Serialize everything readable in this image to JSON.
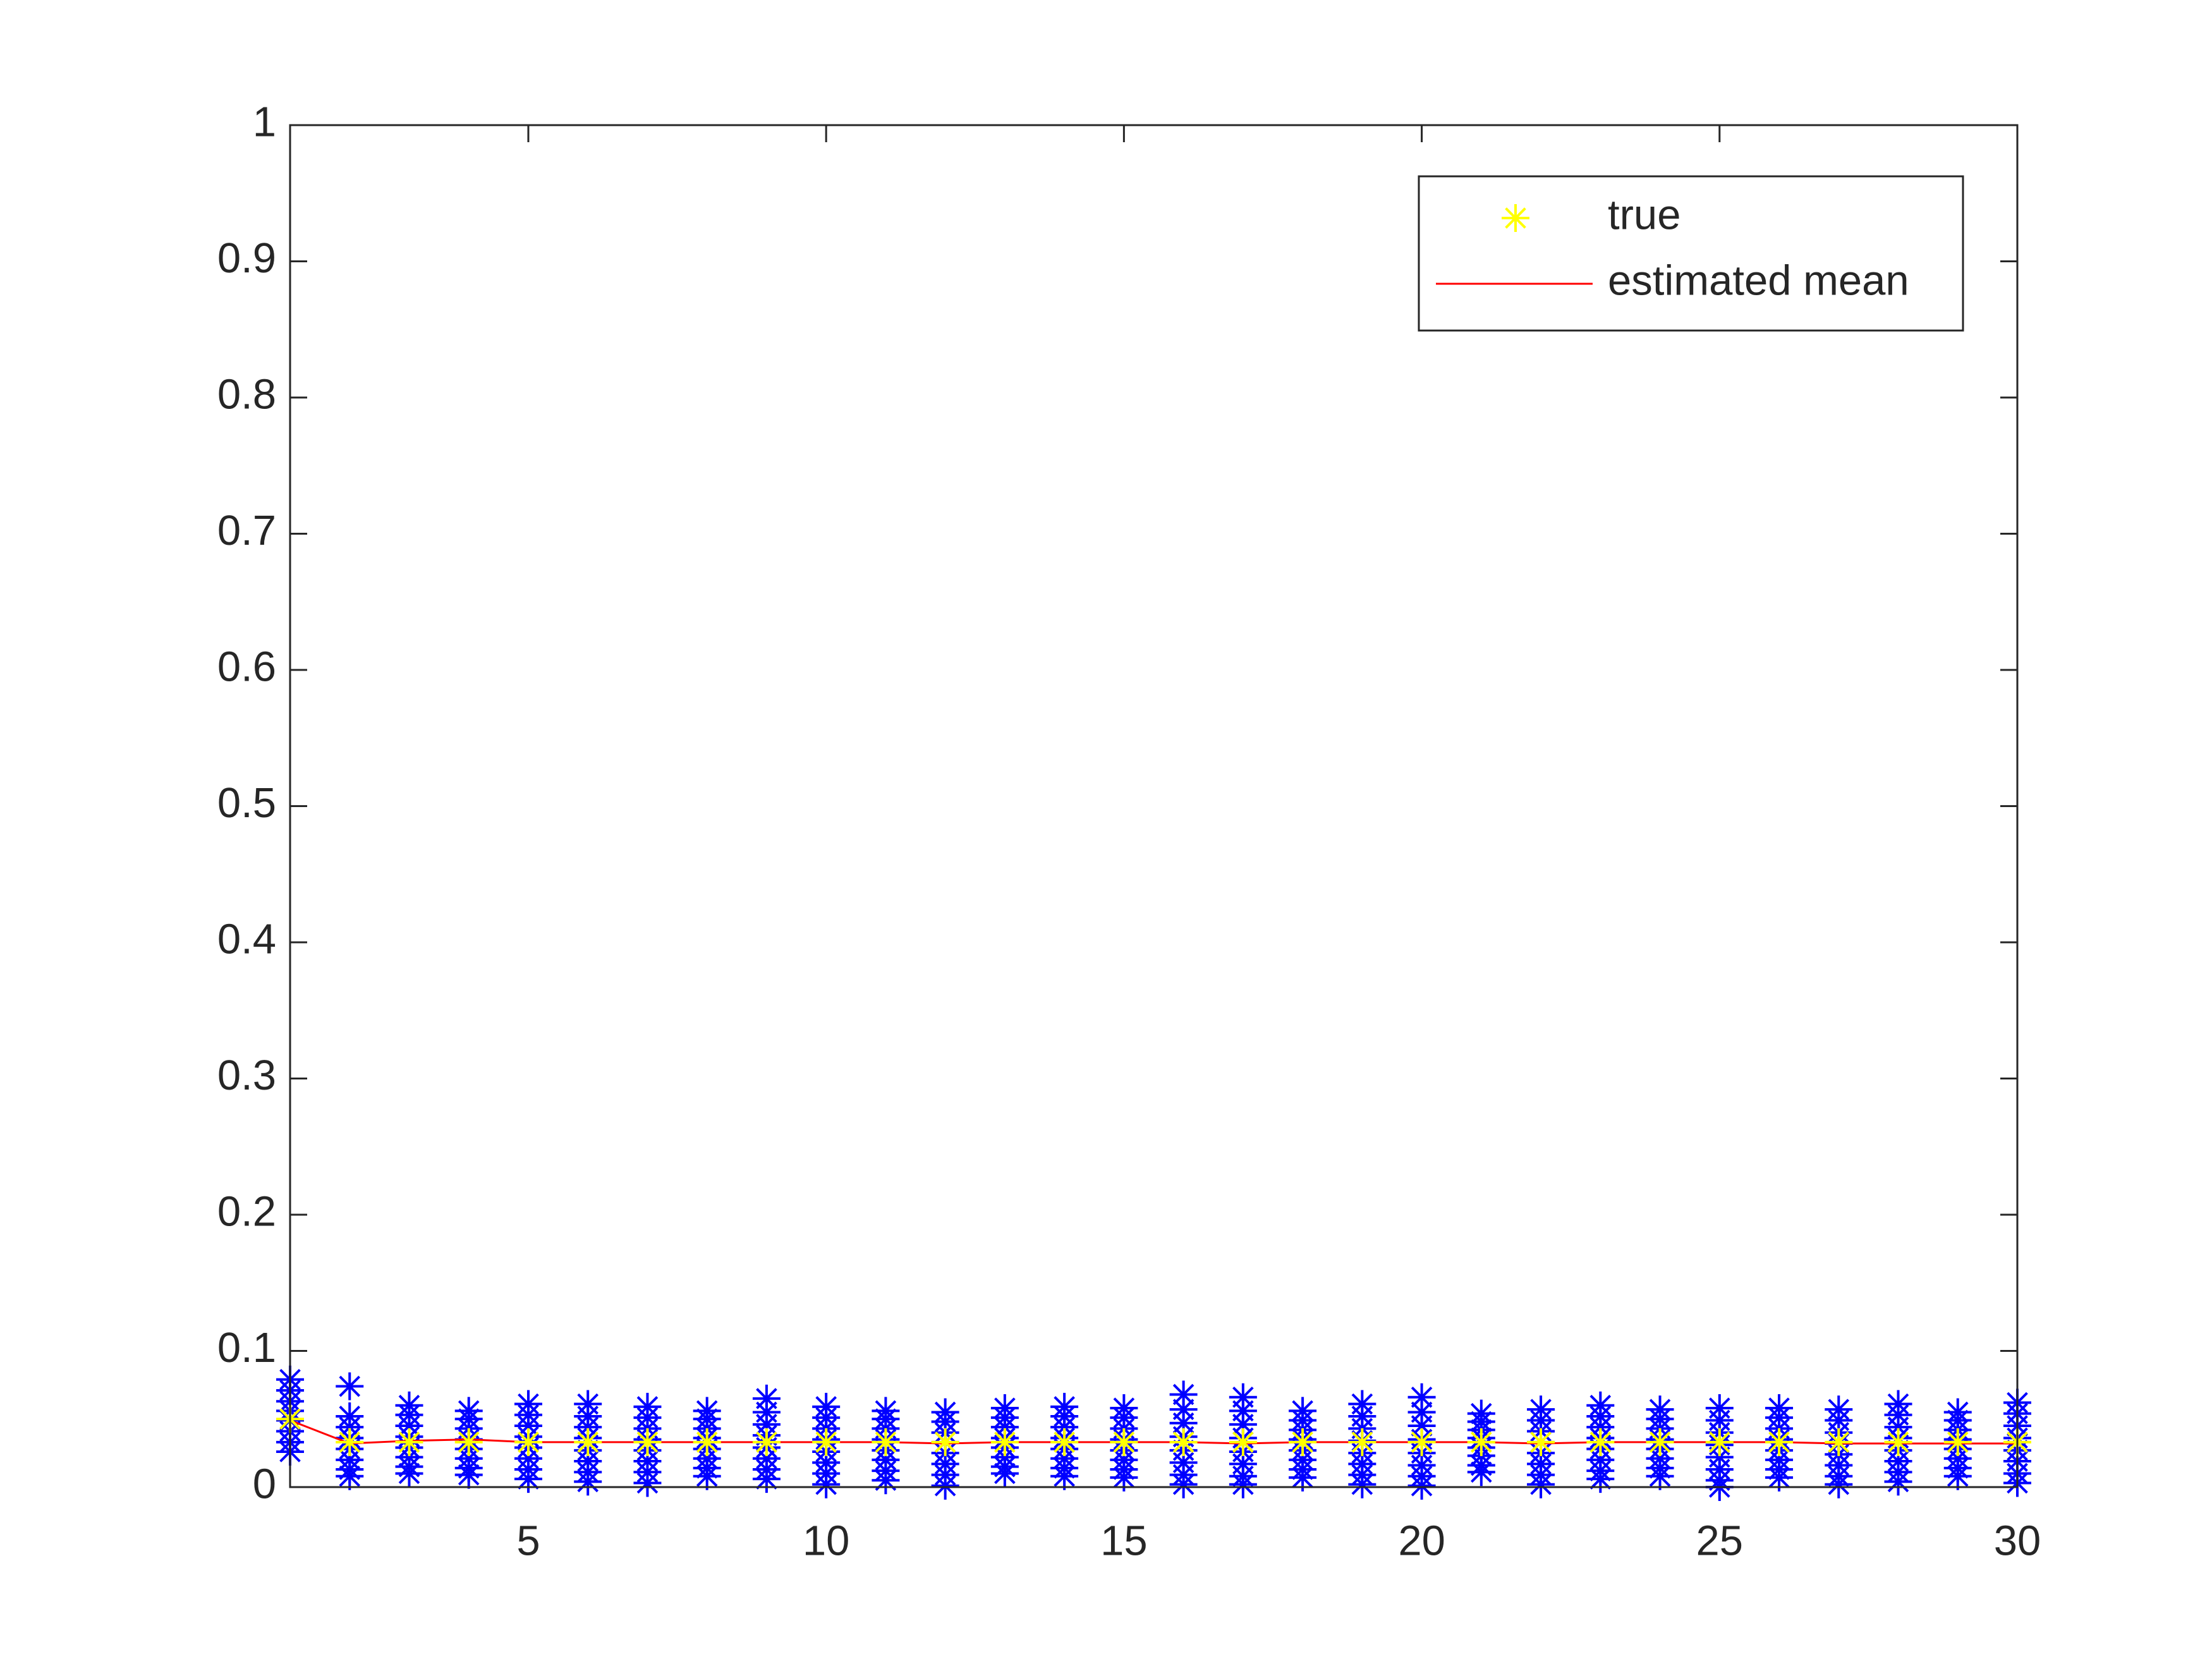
{
  "chart_data": {
    "type": "scatter",
    "x": [
      1,
      2,
      3,
      4,
      5,
      6,
      7,
      8,
      9,
      10,
      11,
      12,
      13,
      14,
      15,
      16,
      17,
      18,
      19,
      20,
      21,
      22,
      23,
      24,
      25,
      26,
      27,
      28,
      29,
      30
    ],
    "series": [
      {
        "color": "#0000ff",
        "marker": "asterisk",
        "values": [
          [
            0.079,
            0.071,
            0.063,
            0.056,
            0.049,
            0.041,
            0.033,
            0.026
          ],
          [
            0.074,
            0.052,
            0.044,
            0.036,
            0.028,
            0.02,
            0.013,
            0.008
          ],
          [
            0.06,
            0.053,
            0.045,
            0.037,
            0.029,
            0.022,
            0.015,
            0.01
          ],
          [
            0.056,
            0.05,
            0.043,
            0.035,
            0.028,
            0.021,
            0.014,
            0.009
          ],
          [
            0.061,
            0.053,
            0.045,
            0.037,
            0.029,
            0.021,
            0.013,
            0.006
          ],
          [
            0.061,
            0.052,
            0.044,
            0.036,
            0.027,
            0.019,
            0.011,
            0.004
          ],
          [
            0.059,
            0.051,
            0.043,
            0.035,
            0.027,
            0.019,
            0.011,
            0.003
          ],
          [
            0.056,
            0.05,
            0.043,
            0.036,
            0.028,
            0.021,
            0.014,
            0.008
          ],
          [
            0.065,
            0.055,
            0.046,
            0.038,
            0.029,
            0.021,
            0.013,
            0.006
          ],
          [
            0.059,
            0.051,
            0.043,
            0.035,
            0.026,
            0.018,
            0.01,
            0.002
          ],
          [
            0.056,
            0.05,
            0.043,
            0.035,
            0.027,
            0.02,
            0.012,
            0.005
          ],
          [
            0.055,
            0.048,
            0.04,
            0.033,
            0.025,
            0.017,
            0.009,
            0.001
          ],
          [
            0.058,
            0.051,
            0.044,
            0.036,
            0.029,
            0.022,
            0.015,
            0.01
          ],
          [
            0.059,
            0.052,
            0.044,
            0.036,
            0.028,
            0.021,
            0.014,
            0.008
          ],
          [
            0.058,
            0.051,
            0.043,
            0.035,
            0.027,
            0.02,
            0.013,
            0.007
          ],
          [
            0.068,
            0.057,
            0.047,
            0.037,
            0.027,
            0.018,
            0.009,
            0.002
          ],
          [
            0.066,
            0.056,
            0.046,
            0.036,
            0.026,
            0.017,
            0.008,
            0.002
          ],
          [
            0.056,
            0.049,
            0.042,
            0.035,
            0.027,
            0.02,
            0.013,
            0.007
          ],
          [
            0.061,
            0.052,
            0.043,
            0.034,
            0.025,
            0.017,
            0.009,
            0.002
          ],
          [
            0.066,
            0.055,
            0.045,
            0.035,
            0.025,
            0.016,
            0.008,
            0.001
          ],
          [
            0.054,
            0.048,
            0.042,
            0.036,
            0.029,
            0.023,
            0.016,
            0.011
          ],
          [
            0.057,
            0.049,
            0.041,
            0.033,
            0.025,
            0.017,
            0.009,
            0.002
          ],
          [
            0.06,
            0.052,
            0.044,
            0.036,
            0.028,
            0.02,
            0.012,
            0.006
          ],
          [
            0.057,
            0.05,
            0.043,
            0.035,
            0.028,
            0.021,
            0.014,
            0.008
          ],
          [
            0.058,
            0.049,
            0.04,
            0.031,
            0.022,
            0.013,
            0.005,
            0
          ],
          [
            0.058,
            0.051,
            0.043,
            0.035,
            0.027,
            0.02,
            0.013,
            0.007
          ],
          [
            0.057,
            0.049,
            0.04,
            0.032,
            0.024,
            0.016,
            0.008,
            0.002
          ],
          [
            0.061,
            0.053,
            0.044,
            0.036,
            0.027,
            0.019,
            0.011,
            0.004
          ],
          [
            0.055,
            0.049,
            0.042,
            0.035,
            0.028,
            0.021,
            0.014,
            0.008
          ],
          [
            0.062,
            0.054,
            0.045,
            0.036,
            0.027,
            0.019,
            0.01,
            0.003
          ]
        ]
      },
      {
        "name": "true",
        "color": "#ffff00",
        "marker": "asterisk",
        "values": [
          0.05,
          0.033,
          0.033,
          0.033,
          0.033,
          0.033,
          0.033,
          0.033,
          0.033,
          0.033,
          0.033,
          0.033,
          0.033,
          0.033,
          0.033,
          0.033,
          0.033,
          0.033,
          0.033,
          0.033,
          0.033,
          0.033,
          0.033,
          0.033,
          0.033,
          0.033,
          0.033,
          0.033,
          0.033,
          0.033
        ]
      },
      {
        "name": "estimated mean",
        "color": "#ff0000",
        "line": true,
        "values": [
          0.049,
          0.032,
          0.034,
          0.035,
          0.033,
          0.033,
          0.033,
          0.033,
          0.033,
          0.033,
          0.033,
          0.032,
          0.033,
          0.033,
          0.033,
          0.033,
          0.032,
          0.033,
          0.033,
          0.033,
          0.033,
          0.032,
          0.033,
          0.033,
          0.033,
          0.033,
          0.032,
          0.032,
          0.032,
          0.032
        ]
      }
    ],
    "xlim": [
      1,
      30
    ],
    "ylim": [
      0,
      1
    ],
    "xticks": [
      5,
      10,
      15,
      20,
      25,
      30
    ],
    "yticks": [
      0,
      0.1,
      0.2,
      0.3,
      0.4,
      0.5,
      0.6,
      0.7,
      0.8,
      0.9,
      1
    ],
    "legend": "upper right",
    "box": true
  }
}
